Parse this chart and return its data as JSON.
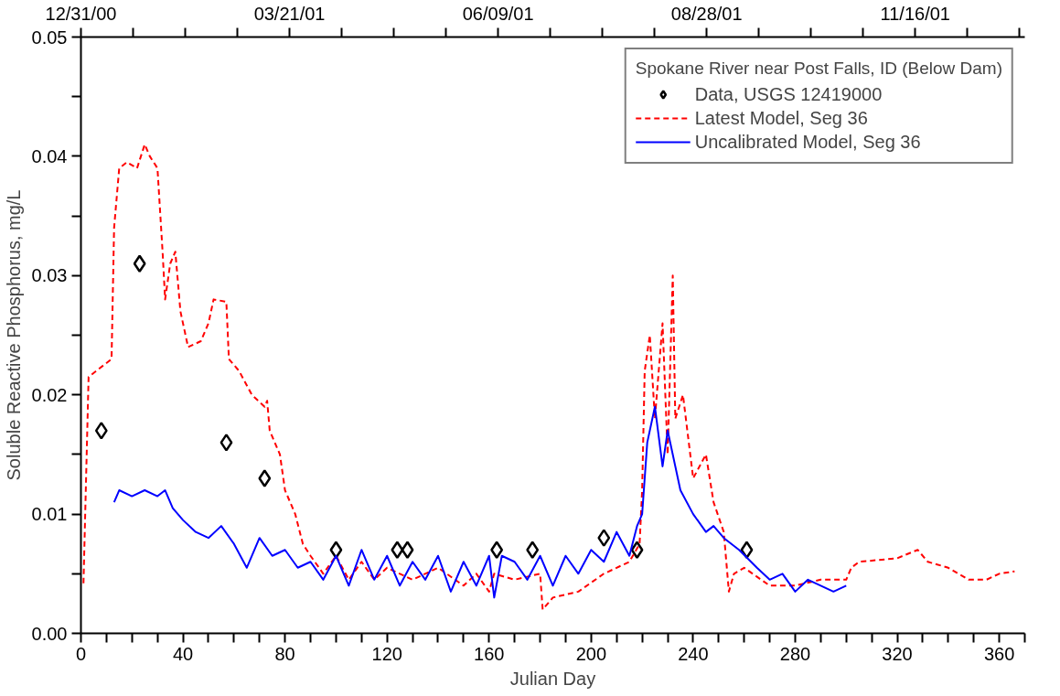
{
  "chart_data": {
    "type": "line",
    "xlabel": "Julian Day",
    "ylabel": "Soluble Reactive Phosphorus, mg/L",
    "legend_title": "Spokane River near Post Falls, ID (Below Dam)",
    "legend": "top right",
    "xlim": [
      0,
      370
    ],
    "ylim": [
      0,
      0.05
    ],
    "xticks": [
      0,
      {
        "value": 10,
        "label": null
      },
      {
        "value": 20,
        "label": null
      },
      {
        "value": 30,
        "label": null
      },
      40,
      {
        "value": 50,
        "label": null
      },
      {
        "value": 60,
        "label": null
      },
      {
        "value": 70,
        "label": null
      },
      80,
      {
        "value": 90,
        "label": null
      },
      {
        "value": 100,
        "label": null
      },
      {
        "value": 110,
        "label": null
      },
      120,
      {
        "value": 130,
        "label": null
      },
      {
        "value": 140,
        "label": null
      },
      {
        "value": 150,
        "label": null
      },
      160,
      {
        "value": 170,
        "label": null
      },
      {
        "value": 180,
        "label": null
      },
      {
        "value": 190,
        "label": null
      },
      200,
      {
        "value": 210,
        "label": null
      },
      {
        "value": 220,
        "label": null
      },
      {
        "value": 230,
        "label": null
      },
      240,
      {
        "value": 250,
        "label": null
      },
      {
        "value": 260,
        "label": null
      },
      {
        "value": 270,
        "label": null
      },
      280,
      {
        "value": 290,
        "label": null
      },
      {
        "value": 300,
        "label": null
      },
      {
        "value": 310,
        "label": null
      },
      320,
      {
        "value": 330,
        "label": null
      },
      {
        "value": 340,
        "label": null
      },
      {
        "value": 350,
        "label": null
      },
      360,
      {
        "value": 370,
        "label": null
      }
    ],
    "x2lim": [
      "2000-12-31",
      "2001-12-28"
    ],
    "x2ticks": [
      {
        "value": "2000-12-31",
        "label": "12/31/00"
      },
      {
        "value": "2001-01-20",
        "label": null
      },
      {
        "value": "2001-02-09",
        "label": null
      },
      {
        "value": "2001-03-01",
        "label": null
      },
      {
        "value": "2001-03-21",
        "label": "03/21/01"
      },
      {
        "value": "2001-04-10",
        "label": null
      },
      {
        "value": "2001-04-30",
        "label": null
      },
      {
        "value": "2001-05-20",
        "label": null
      },
      {
        "value": "2001-06-09",
        "label": "06/09/01"
      },
      {
        "value": "2001-06-29",
        "label": null
      },
      {
        "value": "2001-07-19",
        "label": null
      },
      {
        "value": "2001-08-08",
        "label": null
      },
      {
        "value": "2001-08-28",
        "label": "08/28/01"
      },
      {
        "value": "2001-09-17",
        "label": null
      },
      {
        "value": "2001-10-07",
        "label": null
      },
      {
        "value": "2001-10-27",
        "label": null
      },
      {
        "value": "2001-11-16",
        "label": "11/16/01"
      },
      {
        "value": "2001-12-06",
        "label": null
      },
      {
        "value": "2001-12-26",
        "label": null
      }
    ],
    "yticks": [
      {
        "value": 0,
        "label": "0.00"
      },
      {
        "value": 0.005,
        "label": null
      },
      {
        "value": 0.01,
        "label": "0.01"
      },
      {
        "value": 0.015,
        "label": null
      },
      {
        "value": 0.02,
        "label": "0.02"
      },
      {
        "value": 0.025,
        "label": null
      },
      {
        "value": 0.03,
        "label": "0.03"
      },
      {
        "value": 0.035,
        "label": null
      },
      {
        "value": 0.04,
        "label": "0.04"
      },
      {
        "value": 0.045,
        "label": null
      },
      {
        "value": 0.05,
        "label": "0.05"
      }
    ],
    "series": [
      {
        "name": "Data, USGS 12419000",
        "type": "scatter",
        "marker": "diamond",
        "color": "#000000",
        "x": [
          8,
          23,
          57,
          72,
          100,
          124,
          128,
          163,
          177,
          205,
          218,
          261
        ],
        "values": [
          0.017,
          0.031,
          0.016,
          0.013,
          0.007,
          0.007,
          0.007,
          0.007,
          0.007,
          0.008,
          0.007,
          0.007
        ]
      },
      {
        "name": "Latest Model, Seg 36",
        "line_style": "dashed",
        "marker": "none",
        "color": "#ff0000",
        "x": [
          1,
          3,
          12,
          13,
          15,
          18,
          22,
          25,
          27,
          30,
          32,
          33,
          35,
          37,
          39,
          42,
          47,
          50,
          52,
          57,
          58,
          62,
          67,
          72,
          73,
          74,
          78,
          80,
          84,
          87,
          90,
          95,
          100,
          105,
          110,
          115,
          120,
          130,
          140,
          150,
          155,
          160,
          162,
          170,
          180,
          181,
          185,
          195,
          205,
          215,
          219,
          220,
          221,
          223,
          225,
          228,
          230,
          232,
          233,
          236,
          240,
          245,
          248,
          252,
          254,
          256,
          260,
          270,
          280,
          290,
          300,
          302,
          305,
          320,
          328,
          332,
          340,
          348,
          355,
          360,
          366
        ],
        "values": [
          0.0042,
          0.0215,
          0.023,
          0.034,
          0.039,
          0.0395,
          0.039,
          0.041,
          0.04,
          0.039,
          0.032,
          0.028,
          0.031,
          0.032,
          0.027,
          0.024,
          0.0245,
          0.026,
          0.028,
          0.0278,
          0.023,
          0.022,
          0.02,
          0.019,
          0.0195,
          0.017,
          0.015,
          0.012,
          0.01,
          0.0075,
          0.0065,
          0.005,
          0.0065,
          0.0045,
          0.006,
          0.0045,
          0.0055,
          0.0045,
          0.0055,
          0.004,
          0.005,
          0.0035,
          0.005,
          0.0045,
          0.005,
          0.002,
          0.003,
          0.0035,
          0.005,
          0.006,
          0.0075,
          0.012,
          0.022,
          0.025,
          0.018,
          0.026,
          0.015,
          0.03,
          0.018,
          0.02,
          0.013,
          0.015,
          0.011,
          0.0085,
          0.0035,
          0.005,
          0.0055,
          0.004,
          0.004,
          0.0045,
          0.0045,
          0.0055,
          0.006,
          0.0063,
          0.007,
          0.006,
          0.0055,
          0.0045,
          0.0045,
          0.005,
          0.0052
        ]
      },
      {
        "name": "Uncalibrated Model, Seg 36",
        "line_style": "solid",
        "marker": "none",
        "color": "#0000ff",
        "x": [
          13,
          15,
          20,
          25,
          30,
          33,
          36,
          40,
          45,
          50,
          55,
          60,
          65,
          70,
          75,
          80,
          85,
          90,
          95,
          100,
          105,
          110,
          115,
          120,
          125,
          130,
          135,
          140,
          145,
          150,
          155,
          160,
          162,
          165,
          170,
          175,
          180,
          185,
          190,
          195,
          200,
          205,
          210,
          215,
          218,
          220,
          222,
          225,
          228,
          230,
          235,
          240,
          245,
          248,
          252,
          258,
          265,
          270,
          275,
          280,
          285,
          290,
          295,
          300
        ],
        "values": [
          0.011,
          0.012,
          0.0115,
          0.012,
          0.0115,
          0.012,
          0.0105,
          0.0095,
          0.0085,
          0.008,
          0.009,
          0.0075,
          0.0055,
          0.008,
          0.0065,
          0.007,
          0.0055,
          0.006,
          0.0045,
          0.0065,
          0.004,
          0.007,
          0.0045,
          0.0065,
          0.004,
          0.006,
          0.0045,
          0.0065,
          0.0035,
          0.006,
          0.004,
          0.0065,
          0.003,
          0.0065,
          0.006,
          0.0045,
          0.0065,
          0.004,
          0.0065,
          0.005,
          0.007,
          0.006,
          0.0085,
          0.0065,
          0.009,
          0.01,
          0.016,
          0.019,
          0.014,
          0.017,
          0.012,
          0.01,
          0.0085,
          0.009,
          0.008,
          0.007,
          0.0055,
          0.0045,
          0.005,
          0.0035,
          0.0045,
          0.004,
          0.0035,
          0.004
        ]
      }
    ]
  }
}
